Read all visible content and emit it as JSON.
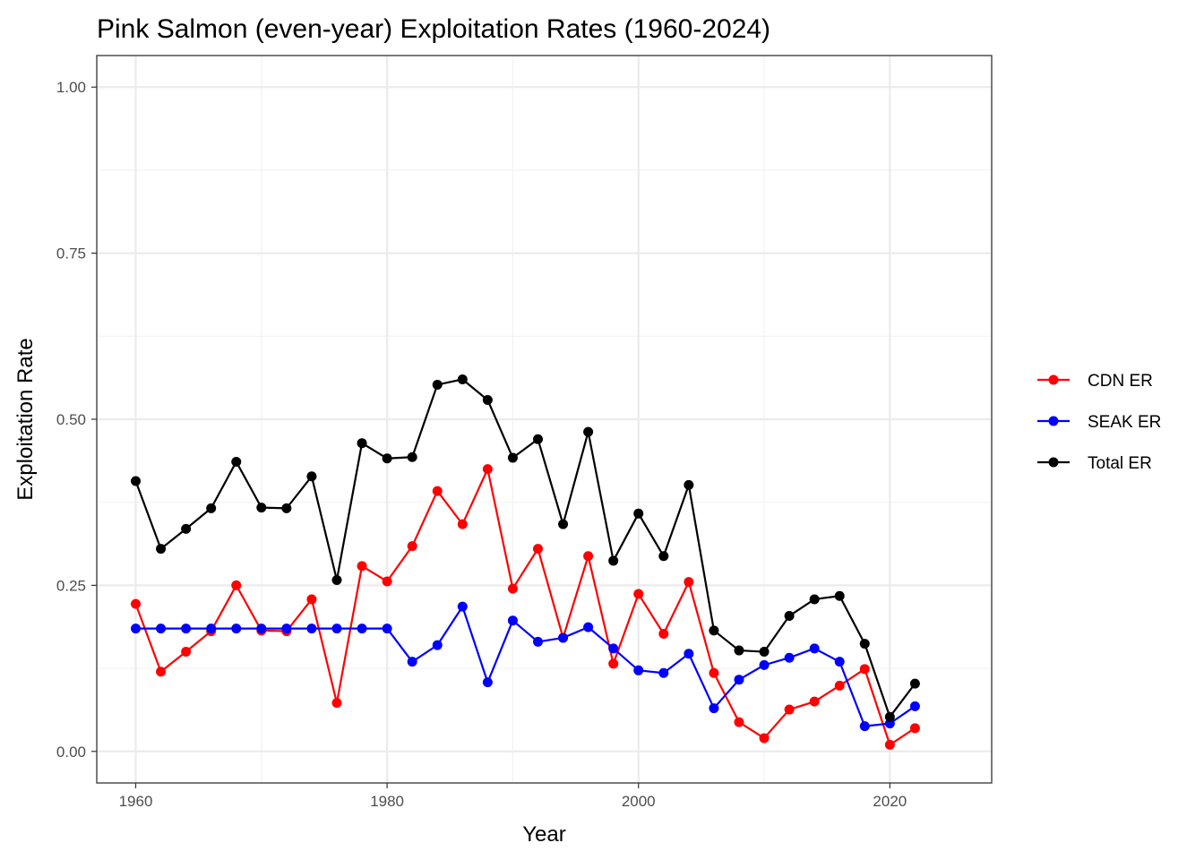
{
  "chart_data": {
    "type": "line",
    "title": "Pink Salmon (even-year) Exploitation Rates (1960-2024)",
    "xlabel": "Year",
    "ylabel": "Exploitation Rate",
    "xlim": [
      1956.9,
      2028.1
    ],
    "ylim": [
      -0.0475,
      1.0475
    ],
    "x_ticks": [
      1960,
      1980,
      2000,
      2020
    ],
    "y_ticks": [
      0,
      0.25,
      0.5,
      0.75,
      1.0
    ],
    "y_tick_labels": [
      "0.00",
      "0.25",
      "0.50",
      "0.75",
      "1.00"
    ],
    "grid": true,
    "legend_position": "right",
    "x": [
      1960,
      1962,
      1964,
      1966,
      1968,
      1970,
      1972,
      1974,
      1976,
      1978,
      1980,
      1982,
      1984,
      1986,
      1988,
      1990,
      1992,
      1994,
      1996,
      1998,
      2000,
      2002,
      2004,
      2006,
      2008,
      2010,
      2012,
      2014,
      2016,
      2018,
      2020,
      2022
    ],
    "series": [
      {
        "name": "CDN ER",
        "color": "#ff0000",
        "values": [
          0.222,
          0.12,
          0.15,
          0.181,
          0.25,
          0.182,
          0.181,
          0.229,
          0.073,
          0.279,
          0.256,
          0.309,
          0.392,
          0.342,
          0.425,
          0.245,
          0.305,
          0.171,
          0.294,
          0.132,
          0.237,
          0.177,
          0.255,
          0.118,
          0.044,
          0.02,
          0.063,
          0.075,
          0.099,
          0.124,
          0.01,
          0.035
        ]
      },
      {
        "name": "SEAK ER",
        "color": "#0000ff",
        "values": [
          0.185,
          0.185,
          0.185,
          0.185,
          0.185,
          0.185,
          0.185,
          0.185,
          0.185,
          0.185,
          0.185,
          0.135,
          0.16,
          0.218,
          0.104,
          0.197,
          0.165,
          0.171,
          0.187,
          0.155,
          0.122,
          0.118,
          0.147,
          0.065,
          0.108,
          0.13,
          0.141,
          0.155,
          0.135,
          0.038,
          0.042,
          0.068
        ]
      },
      {
        "name": "Total ER",
        "color": "#000000",
        "values": [
          0.407,
          0.305,
          0.335,
          0.366,
          0.436,
          0.367,
          0.366,
          0.414,
          0.258,
          0.464,
          0.441,
          0.443,
          0.552,
          0.56,
          0.529,
          0.442,
          0.47,
          0.342,
          0.481,
          0.287,
          0.358,
          0.294,
          0.401,
          0.182,
          0.152,
          0.15,
          0.204,
          0.229,
          0.234,
          0.162,
          0.052,
          0.102
        ]
      }
    ]
  }
}
